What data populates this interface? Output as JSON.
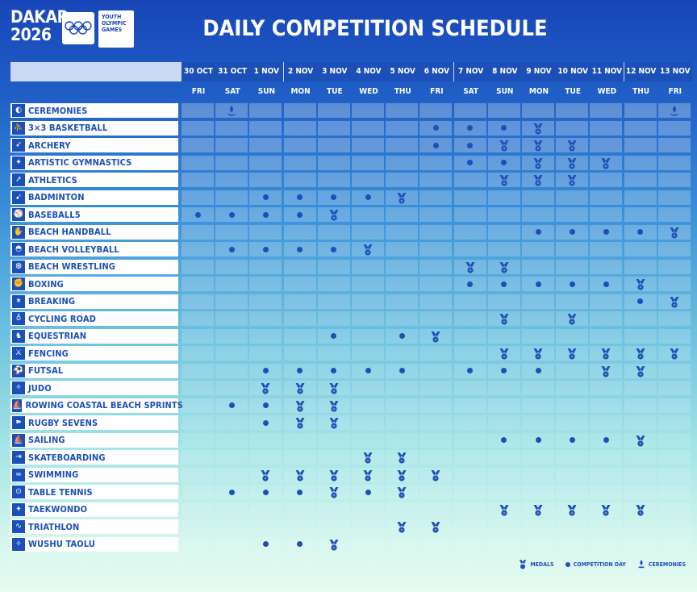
{
  "header": {
    "logo_line1": "DAKAR",
    "logo_line2": "2026",
    "yog_line1": "YOUTH",
    "yog_line2": "OLYMPIC",
    "yog_line3": "GAMES",
    "title": "DAILY COMPETITION SCHEDULE"
  },
  "colors": {
    "primary": "#1c4fb7",
    "header_bg": "#1846b8",
    "date_strip": "#c9d9f1"
  },
  "dates": [
    "30 OCT",
    "31 OCT",
    "1 NOV",
    "2 NOV",
    "3 NOV",
    "4 NOV",
    "5 NOV",
    "6 NOV",
    "7 NOV",
    "8 NOV",
    "9 NOV",
    "10 NOV",
    "11 NOV",
    "12 NOV",
    "13 NOV"
  ],
  "days": [
    "FRI",
    "SAT",
    "SUN",
    "MON",
    "TUE",
    "WED",
    "THU",
    "FRI",
    "SAT",
    "SUN",
    "MON",
    "TUE",
    "WED",
    "THU",
    "FRI"
  ],
  "legend": {
    "medals": "MEDALS",
    "competition_day": "COMPETITION DAY",
    "ceremonies": "CEREMONIES"
  },
  "sports": [
    {
      "name": "CEREMONIES",
      "icon": "ceremonies-icon",
      "marks": [
        "",
        "c",
        "",
        "",
        "",
        "",
        "",
        "",
        "",
        "",
        "",
        "",
        "",
        "",
        "c"
      ]
    },
    {
      "name": "3×3 BASKETBALL",
      "icon": "basketball-icon",
      "marks": [
        "",
        "",
        "",
        "",
        "",
        "",
        "",
        "d",
        "d",
        "d",
        "m",
        "",
        "",
        "",
        ""
      ]
    },
    {
      "name": "ARCHERY",
      "icon": "archery-icon",
      "marks": [
        "",
        "",
        "",
        "",
        "",
        "",
        "",
        "d",
        "d",
        "m",
        "m",
        "m",
        "",
        "",
        ""
      ]
    },
    {
      "name": "ARTISTIC GYMNASTICS",
      "icon": "gymnastics-icon",
      "marks": [
        "",
        "",
        "",
        "",
        "",
        "",
        "",
        "",
        "d",
        "d",
        "m",
        "m",
        "m",
        "",
        ""
      ]
    },
    {
      "name": "ATHLETICS",
      "icon": "athletics-icon",
      "marks": [
        "",
        "",
        "",
        "",
        "",
        "",
        "",
        "",
        "",
        "m",
        "m",
        "m",
        "",
        "",
        ""
      ]
    },
    {
      "name": "BADMINTON",
      "icon": "badminton-icon",
      "marks": [
        "",
        "",
        "d",
        "d",
        "d",
        "d",
        "m",
        "",
        "",
        "",
        "",
        "",
        "",
        "",
        ""
      ]
    },
    {
      "name": "BASEBALL5",
      "icon": "baseball-icon",
      "marks": [
        "d",
        "d",
        "d",
        "d",
        "m",
        "",
        "",
        "",
        "",
        "",
        "",
        "",
        "",
        "",
        ""
      ]
    },
    {
      "name": "BEACH HANDBALL",
      "icon": "handball-icon",
      "marks": [
        "",
        "",
        "",
        "",
        "",
        "",
        "",
        "",
        "",
        "",
        "d",
        "d",
        "d",
        "d",
        "m"
      ]
    },
    {
      "name": "BEACH VOLLEYBALL",
      "icon": "volleyball-icon",
      "marks": [
        "",
        "d",
        "d",
        "d",
        "d",
        "m",
        "",
        "",
        "",
        "",
        "",
        "",
        "",
        "",
        ""
      ]
    },
    {
      "name": "BEACH WRESTLING",
      "icon": "wrestling-icon",
      "marks": [
        "",
        "",
        "",
        "",
        "",
        "",
        "",
        "",
        "m",
        "m",
        "",
        "",
        "",
        "",
        ""
      ]
    },
    {
      "name": "BOXING",
      "icon": "boxing-icon",
      "marks": [
        "",
        "",
        "",
        "",
        "",
        "",
        "",
        "",
        "d",
        "d",
        "d",
        "d",
        "d",
        "m",
        ""
      ]
    },
    {
      "name": "BREAKING",
      "icon": "breaking-icon",
      "marks": [
        "",
        "",
        "",
        "",
        "",
        "",
        "",
        "",
        "",
        "",
        "",
        "",
        "",
        "d",
        "m"
      ]
    },
    {
      "name": "CYCLING ROAD",
      "icon": "cycling-icon",
      "marks": [
        "",
        "",
        "",
        "",
        "",
        "",
        "",
        "",
        "",
        "m",
        "",
        "m",
        "",
        "",
        ""
      ]
    },
    {
      "name": "EQUESTRIAN",
      "icon": "equestrian-icon",
      "marks": [
        "",
        "",
        "",
        "",
        "d",
        "",
        "d",
        "m",
        "",
        "",
        "",
        "",
        "",
        "",
        ""
      ]
    },
    {
      "name": "FENCING",
      "icon": "fencing-icon",
      "marks": [
        "",
        "",
        "",
        "",
        "",
        "",
        "",
        "",
        "",
        "m",
        "m",
        "m",
        "m",
        "m",
        "m"
      ]
    },
    {
      "name": "FUTSAL",
      "icon": "futsal-icon",
      "marks": [
        "",
        "",
        "d",
        "d",
        "d",
        "d",
        "d",
        "",
        "d",
        "d",
        "d",
        "",
        "m",
        "m",
        ""
      ]
    },
    {
      "name": "JUDO",
      "icon": "judo-icon",
      "marks": [
        "",
        "",
        "m",
        "m",
        "m",
        "",
        "",
        "",
        "",
        "",
        "",
        "",
        "",
        "",
        ""
      ]
    },
    {
      "name": "ROWING COASTAL BEACH SPRINTS",
      "icon": "rowing-icon",
      "marks": [
        "",
        "d",
        "d",
        "m",
        "m",
        "",
        "",
        "",
        "",
        "",
        "",
        "",
        "",
        "",
        ""
      ]
    },
    {
      "name": "RUGBY SEVENS",
      "icon": "rugby-icon",
      "marks": [
        "",
        "",
        "d",
        "m",
        "m",
        "",
        "",
        "",
        "",
        "",
        "",
        "",
        "",
        "",
        ""
      ]
    },
    {
      "name": "SAILING",
      "icon": "sailing-icon",
      "marks": [
        "",
        "",
        "",
        "",
        "",
        "",
        "",
        "",
        "",
        "d",
        "d",
        "d",
        "d",
        "m",
        ""
      ]
    },
    {
      "name": "SKATEBOARDING",
      "icon": "skateboarding-icon",
      "marks": [
        "",
        "",
        "",
        "",
        "",
        "m",
        "m",
        "",
        "",
        "",
        "",
        "",
        "",
        "",
        ""
      ]
    },
    {
      "name": "SWIMMING",
      "icon": "swimming-icon",
      "marks": [
        "",
        "",
        "m",
        "m",
        "m",
        "m",
        "m",
        "m",
        "",
        "",
        "",
        "",
        "",
        "",
        ""
      ]
    },
    {
      "name": "TABLE TENNIS",
      "icon": "table-tennis-icon",
      "marks": [
        "",
        "d",
        "d",
        "d",
        "m",
        "d",
        "m",
        "",
        "",
        "",
        "",
        "",
        "",
        "",
        ""
      ]
    },
    {
      "name": "TAEKWONDO",
      "icon": "taekwondo-icon",
      "marks": [
        "",
        "",
        "",
        "",
        "",
        "",
        "",
        "",
        "",
        "m",
        "m",
        "m",
        "m",
        "m",
        ""
      ]
    },
    {
      "name": "TRIATHLON",
      "icon": "triathlon-icon",
      "marks": [
        "",
        "",
        "",
        "",
        "",
        "",
        "m",
        "m",
        "",
        "",
        "",
        "",
        "",
        "",
        ""
      ]
    },
    {
      "name": "WUSHU TAOLU",
      "icon": "wushu-icon",
      "marks": [
        "",
        "",
        "d",
        "d",
        "m",
        "",
        "",
        "",
        "",
        "",
        "",
        "",
        "",
        "",
        ""
      ]
    }
  ]
}
